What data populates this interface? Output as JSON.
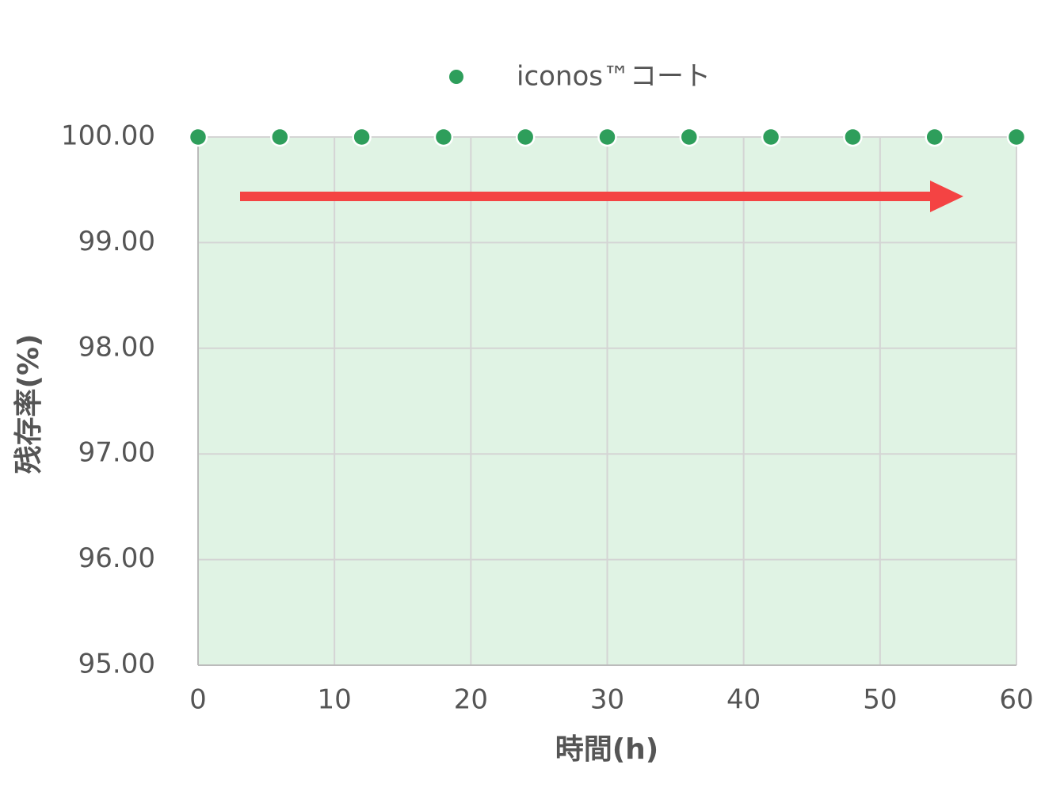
{
  "chart_data": {
    "type": "area",
    "x_label": "時間(h)",
    "y_label": "残存率(%)",
    "x": [
      0,
      6,
      12,
      18,
      24,
      30,
      36,
      42,
      48,
      54,
      60
    ],
    "series": [
      {
        "name": "iconos™コート",
        "color": "#2e9e5b",
        "values": [
          100,
          100,
          100,
          100,
          100,
          100,
          100,
          100,
          100,
          100,
          100
        ]
      }
    ],
    "area_color": "#e0f3e4",
    "xlim": [
      0,
      60
    ],
    "xticks": [
      0,
      10,
      20,
      30,
      40,
      50,
      60
    ],
    "ylim": [
      95,
      100
    ],
    "yticks": [
      {
        "value": 95,
        "label": "95.00"
      },
      {
        "value": 96,
        "label": "96.00"
      },
      {
        "value": 97,
        "label": "97.00"
      },
      {
        "value": 98,
        "label": "98.00"
      },
      {
        "value": 99,
        "label": "99.00"
      },
      {
        "value": 100,
        "label": "100.00"
      }
    ],
    "grid": true,
    "legend": "top"
  }
}
